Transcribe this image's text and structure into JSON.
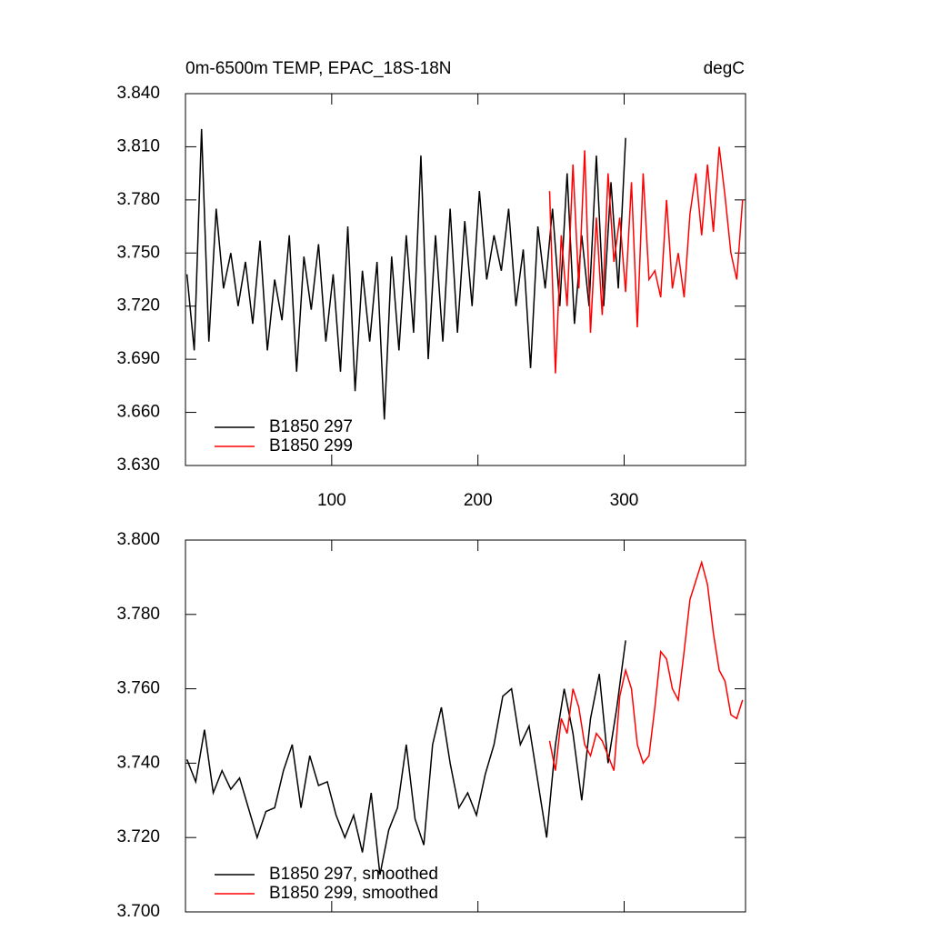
{
  "chart_data": [
    {
      "type": "line",
      "title": "0m-6500m TEMP, EPAC_18S-18N",
      "units": "degC",
      "xlim": [
        0,
        383
      ],
      "xticks": [
        100,
        200,
        300
      ],
      "ylim": [
        3.63,
        3.84
      ],
      "yticks": [
        {
          "value": 3.63,
          "label": "3.630"
        },
        {
          "value": 3.66,
          "label": "3.660"
        },
        {
          "value": 3.69,
          "label": "3.690"
        },
        {
          "value": 3.72,
          "label": "3.720"
        },
        {
          "value": 3.75,
          "label": "3.750"
        },
        {
          "value": 3.78,
          "label": "3.780"
        },
        {
          "value": 3.81,
          "label": "3.810"
        },
        {
          "value": 3.84,
          "label": "3.840"
        }
      ],
      "series": [
        {
          "name": "B1850 297",
          "color": "#000000",
          "x": [
            1,
            6,
            11,
            16,
            21,
            26,
            31,
            36,
            41,
            46,
            51,
            56,
            61,
            66,
            71,
            76,
            81,
            86,
            91,
            96,
            101,
            106,
            111,
            116,
            121,
            126,
            131,
            136,
            141,
            146,
            151,
            156,
            161,
            166,
            171,
            176,
            181,
            186,
            191,
            196,
            201,
            206,
            211,
            216,
            221,
            226,
            231,
            236,
            241,
            246,
            251,
            256,
            261,
            266,
            271,
            276,
            281,
            286,
            291,
            296,
            301
          ],
          "values": [
            3.738,
            3.695,
            3.82,
            3.7,
            3.775,
            3.73,
            3.75,
            3.72,
            3.745,
            3.71,
            3.757,
            3.695,
            3.735,
            3.712,
            3.76,
            3.683,
            3.748,
            3.718,
            3.755,
            3.7,
            3.738,
            3.683,
            3.765,
            3.672,
            3.74,
            3.7,
            3.745,
            3.656,
            3.748,
            3.695,
            3.76,
            3.705,
            3.805,
            3.69,
            3.76,
            3.7,
            3.775,
            3.705,
            3.768,
            3.72,
            3.785,
            3.735,
            3.76,
            3.74,
            3.775,
            3.72,
            3.752,
            3.685,
            3.765,
            3.73,
            3.775,
            3.72,
            3.795,
            3.71,
            3.76,
            3.72,
            3.805,
            3.72,
            3.79,
            3.73,
            3.815
          ]
        },
        {
          "name": "B1850 299",
          "color": "#ff0000",
          "x": [
            249,
            253,
            257,
            261,
            265,
            269,
            273,
            277,
            281,
            285,
            289,
            293,
            297,
            301,
            305,
            309,
            313,
            317,
            321,
            325,
            329,
            333,
            337,
            341,
            345,
            349,
            353,
            357,
            361,
            365,
            369,
            373,
            377,
            381
          ],
          "values": [
            3.785,
            3.682,
            3.76,
            3.72,
            3.8,
            3.73,
            3.808,
            3.705,
            3.77,
            3.715,
            3.795,
            3.745,
            3.77,
            3.728,
            3.79,
            3.708,
            3.795,
            3.735,
            3.74,
            3.725,
            3.78,
            3.73,
            3.75,
            3.725,
            3.772,
            3.795,
            3.76,
            3.8,
            3.762,
            3.81,
            3.782,
            3.75,
            3.735,
            3.78
          ]
        }
      ]
    },
    {
      "type": "line",
      "xlim": [
        0,
        383
      ],
      "xticks": [
        100,
        200,
        300
      ],
      "ylim": [
        3.7,
        3.8
      ],
      "yticks": [
        {
          "value": 3.7,
          "label": "3.700"
        },
        {
          "value": 3.72,
          "label": "3.720"
        },
        {
          "value": 3.74,
          "label": "3.740"
        },
        {
          "value": 3.76,
          "label": "3.760"
        },
        {
          "value": 3.78,
          "label": "3.780"
        },
        {
          "value": 3.8,
          "label": "3.800"
        }
      ],
      "series": [
        {
          "name": "B1850 297, smoothed",
          "color": "#000000",
          "x": [
            1,
            7,
            13,
            19,
            25,
            31,
            37,
            43,
            49,
            55,
            61,
            67,
            73,
            79,
            85,
            91,
            97,
            103,
            109,
            115,
            121,
            127,
            133,
            139,
            145,
            151,
            157,
            163,
            169,
            175,
            181,
            187,
            193,
            199,
            205,
            211,
            217,
            223,
            229,
            235,
            241,
            247,
            253,
            259,
            265,
            271,
            277,
            283,
            289,
            295,
            301
          ],
          "values": [
            3.741,
            3.735,
            3.749,
            3.732,
            3.738,
            3.733,
            3.736,
            3.728,
            3.72,
            3.727,
            3.728,
            3.738,
            3.745,
            3.728,
            3.742,
            3.734,
            3.735,
            3.726,
            3.72,
            3.726,
            3.716,
            3.732,
            3.71,
            3.722,
            3.728,
            3.745,
            3.725,
            3.718,
            3.745,
            3.755,
            3.74,
            3.728,
            3.732,
            3.726,
            3.737,
            3.745,
            3.758,
            3.76,
            3.745,
            3.75,
            3.735,
            3.72,
            3.745,
            3.76,
            3.748,
            3.73,
            3.752,
            3.764,
            3.74,
            3.755,
            3.773
          ]
        },
        {
          "name": "B1850 299, smoothed",
          "color": "#ff0000",
          "x": [
            249,
            253,
            257,
            261,
            265,
            269,
            273,
            277,
            281,
            285,
            289,
            293,
            297,
            301,
            305,
            309,
            313,
            317,
            321,
            325,
            329,
            333,
            337,
            341,
            345,
            349,
            353,
            357,
            361,
            365,
            369,
            373,
            377,
            381
          ],
          "values": [
            3.746,
            3.738,
            3.752,
            3.748,
            3.76,
            3.755,
            3.745,
            3.742,
            3.748,
            3.746,
            3.742,
            3.738,
            3.758,
            3.765,
            3.76,
            3.745,
            3.74,
            3.742,
            3.755,
            3.77,
            3.768,
            3.76,
            3.757,
            3.77,
            3.784,
            3.789,
            3.794,
            3.788,
            3.775,
            3.765,
            3.762,
            3.753,
            3.752,
            3.757
          ]
        }
      ]
    }
  ]
}
